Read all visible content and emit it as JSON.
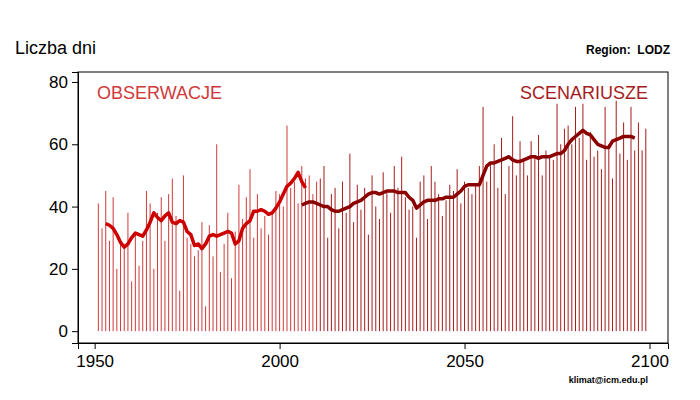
{
  "chart_data": {
    "type": "bar",
    "title": "Region:  LODZ",
    "y_label": "Liczba dni",
    "annotations": [
      "klimat@icm.edu.pl"
    ],
    "xlim": [
      1945.5,
      2105
    ],
    "ylim": [
      -3.8,
      83.2
    ],
    "xticks": [
      1950,
      2000,
      2050,
      2100
    ],
    "yticks": [
      0,
      20,
      40,
      60,
      80
    ],
    "x": [
      1951,
      1952,
      1953,
      1954,
      1955,
      1956,
      1957,
      1958,
      1959,
      1960,
      1961,
      1962,
      1963,
      1964,
      1965,
      1966,
      1967,
      1968,
      1969,
      1970,
      1971,
      1972,
      1973,
      1974,
      1975,
      1976,
      1977,
      1978,
      1979,
      1980,
      1981,
      1982,
      1983,
      1984,
      1985,
      1986,
      1987,
      1988,
      1989,
      1990,
      1991,
      1992,
      1993,
      1994,
      1995,
      1996,
      1997,
      1998,
      1999,
      2000,
      2001,
      2002,
      2003,
      2004,
      2005,
      2006,
      2007,
      2008,
      2009,
      2010,
      2011,
      2012,
      2013,
      2014,
      2015,
      2016,
      2017,
      2018,
      2019,
      2020,
      2021,
      2022,
      2023,
      2024,
      2025,
      2026,
      2027,
      2028,
      2029,
      2030,
      2031,
      2032,
      2033,
      2034,
      2035,
      2036,
      2037,
      2038,
      2039,
      2040,
      2041,
      2042,
      2043,
      2044,
      2045,
      2046,
      2047,
      2048,
      2049,
      2050,
      2051,
      2052,
      2053,
      2054,
      2055,
      2056,
      2057,
      2058,
      2059,
      2060,
      2061,
      2062,
      2063,
      2064,
      2065,
      2066,
      2067,
      2068,
      2069,
      2070,
      2071,
      2072,
      2073,
      2074,
      2075,
      2076,
      2077,
      2078,
      2079,
      2080,
      2081,
      2082,
      2083,
      2084,
      2085,
      2086,
      2087,
      2088,
      2089,
      2090,
      2091,
      2092,
      2093,
      2094,
      2095,
      2096,
      2097,
      2098,
      2099
    ],
    "series": [
      {
        "name": "OBSERWACJE",
        "type": "bar",
        "color": "#d03a3a",
        "values": [
          41,
          33,
          45,
          29,
          43,
          20,
          28,
          27,
          38,
          16,
          31,
          21,
          29,
          45,
          41,
          20,
          38,
          43,
          29,
          44,
          49,
          37,
          13,
          50,
          30,
          28,
          24,
          26,
          35,
          8,
          34,
          24,
          60,
          19,
          28,
          38,
          17,
          32,
          47,
          36,
          43,
          52,
          30,
          44,
          33,
          37,
          31,
          38,
          45,
          44,
          40,
          66,
          46,
          48,
          41,
          53,
          49,
          50,
          44,
          48,
          null,
          null,
          null,
          null,
          null,
          null,
          null,
          null,
          null,
          null,
          null,
          null,
          null,
          null,
          null,
          null,
          null,
          null,
          null,
          null,
          null,
          null,
          null,
          null,
          null,
          null,
          null,
          null,
          null,
          null,
          null,
          null,
          null,
          null,
          null,
          null,
          null,
          null,
          null,
          null,
          null,
          null,
          null,
          null,
          null,
          null,
          null,
          null,
          null,
          null,
          null,
          null,
          null,
          null,
          null,
          null,
          null,
          null,
          null,
          null,
          null,
          null,
          null,
          null,
          null,
          null,
          null,
          null,
          null,
          null,
          null,
          null,
          null,
          null,
          null,
          null,
          null,
          null,
          null,
          null,
          null,
          null,
          null,
          null,
          null,
          null,
          null,
          null,
          null
        ]
      },
      {
        "name": "SCENARIUSZE",
        "type": "bar",
        "color": "#a51c1c",
        "values": [
          null,
          null,
          null,
          null,
          null,
          null,
          null,
          null,
          null,
          null,
          null,
          null,
          null,
          null,
          null,
          null,
          null,
          null,
          null,
          null,
          null,
          null,
          null,
          null,
          null,
          null,
          null,
          null,
          null,
          null,
          null,
          null,
          null,
          null,
          null,
          null,
          null,
          null,
          null,
          null,
          null,
          null,
          null,
          null,
          null,
          null,
          null,
          null,
          null,
          null,
          null,
          null,
          null,
          null,
          null,
          null,
          null,
          null,
          null,
          null,
          49,
          53,
          30,
          44,
          46,
          33,
          48,
          38,
          57,
          35,
          47,
          39,
          46,
          31,
          50,
          40,
          36,
          51,
          45,
          38,
          53,
          46,
          56,
          43,
          39,
          40,
          30,
          48,
          50,
          36,
          53,
          48,
          44,
          37,
          42,
          47,
          45,
          52,
          41,
          48,
          46,
          44,
          47,
          53,
          72,
          48,
          54,
          60,
          46,
          62,
          44,
          53,
          69,
          50,
          61,
          55,
          50,
          61,
          56,
          63,
          50,
          58,
          56,
          55,
          73,
          60,
          65,
          66,
          60,
          72,
          62,
          73,
          55,
          64,
          56,
          58,
          52,
          72,
          60,
          49,
          74,
          57,
          67,
          55,
          72,
          58,
          67,
          58,
          65
        ]
      },
      {
        "type": "line",
        "color": "#cc0000",
        "values": [
          null,
          null,
          34.5,
          34,
          33,
          31,
          28.5,
          27,
          28,
          30,
          31.5,
          31,
          30.5,
          32.5,
          35,
          38,
          36.5,
          35.5,
          37,
          38,
          35,
          34.5,
          35.5,
          35,
          32,
          31,
          27.5,
          28,
          26.5,
          28,
          30.5,
          31,
          30.5,
          31,
          31.5,
          32,
          31.5,
          28,
          29,
          33,
          34.5,
          35.5,
          38.5,
          38.5,
          39,
          38.5,
          37.5,
          38,
          39.5,
          41.5,
          44,
          46.5,
          47.5,
          49,
          51,
          48,
          46,
          null,
          null,
          null,
          null,
          null,
          null,
          null,
          null,
          null,
          null,
          null,
          null,
          null,
          null,
          null,
          null,
          null,
          null,
          null,
          null,
          null,
          null,
          null,
          null,
          null,
          null,
          null,
          null,
          null,
          null,
          null,
          null,
          null,
          null,
          null,
          null,
          null,
          null,
          null,
          null,
          null,
          null,
          null,
          null,
          null,
          null,
          null,
          null,
          null,
          null,
          null,
          null,
          null,
          null,
          null,
          null,
          null,
          null,
          null,
          null,
          null,
          null,
          null,
          null,
          null,
          null,
          null,
          null,
          null,
          null,
          null,
          null,
          null,
          null,
          null,
          null,
          null,
          null,
          null,
          null,
          null,
          null,
          null,
          null,
          null,
          null,
          null,
          null,
          null,
          null,
          null,
          null
        ]
      },
      {
        "type": "line",
        "color": "#8b0000",
        "values": [
          null,
          null,
          null,
          null,
          null,
          null,
          null,
          null,
          null,
          null,
          null,
          null,
          null,
          null,
          null,
          null,
          null,
          null,
          null,
          null,
          null,
          null,
          null,
          null,
          null,
          null,
          null,
          null,
          null,
          null,
          null,
          null,
          null,
          null,
          null,
          null,
          null,
          null,
          null,
          null,
          null,
          null,
          null,
          null,
          null,
          null,
          null,
          null,
          null,
          null,
          null,
          null,
          null,
          null,
          null,
          40.5,
          41,
          41.5,
          41.5,
          41,
          40.5,
          40,
          40,
          39,
          38.5,
          38.5,
          39,
          39.5,
          40,
          41,
          41.5,
          42,
          43,
          44,
          44.5,
          44.5,
          44,
          44.5,
          45,
          45,
          45,
          44.5,
          44.5,
          44.5,
          43,
          42,
          39.5,
          40.5,
          41.5,
          42,
          42,
          42,
          42.5,
          42.5,
          43,
          43,
          43,
          44,
          45,
          46.5,
          47,
          47,
          47,
          47,
          50,
          53,
          54,
          54,
          54.5,
          55,
          55.5,
          56,
          55,
          54.5,
          54.5,
          55,
          55.5,
          56,
          56,
          55.5,
          56,
          56,
          56,
          56.5,
          57,
          57,
          58,
          60,
          61.5,
          62.5,
          63.5,
          64.5,
          63.5,
          63,
          61.5,
          60,
          59.5,
          59,
          59,
          61,
          61.5,
          62,
          62.5,
          62.5,
          62.5,
          62,
          null,
          null,
          null
        ]
      }
    ]
  }
}
